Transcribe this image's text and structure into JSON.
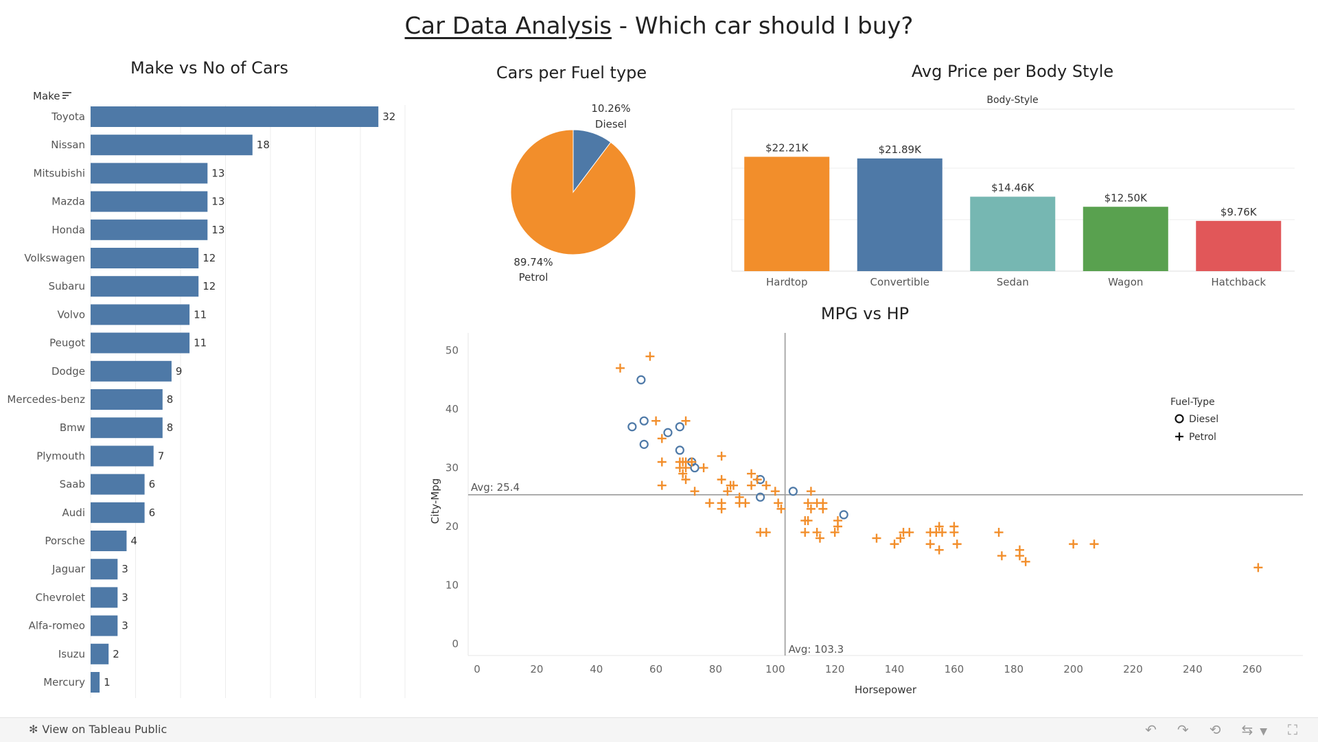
{
  "page": {
    "title_main": "Car Data Analysis",
    "title_rest": " - Which car should I buy?"
  },
  "chart_data": [
    {
      "type": "bar",
      "orientation": "horizontal",
      "title": "Make vs No of Cars",
      "ylabel": "Make",
      "categories": [
        "Toyota",
        "Nissan",
        "Mitsubishi",
        "Mazda",
        "Honda",
        "Volkswagen",
        "Subaru",
        "Volvo",
        "Peugot",
        "Dodge",
        "Mercedes-benz",
        "Bmw",
        "Plymouth",
        "Saab",
        "Audi",
        "Porsche",
        "Jaguar",
        "Chevrolet",
        "Alfa-romeo",
        "Isuzu",
        "Mercury"
      ],
      "values": [
        32,
        18,
        13,
        13,
        13,
        12,
        12,
        11,
        11,
        9,
        8,
        8,
        7,
        6,
        6,
        4,
        3,
        3,
        3,
        2,
        1
      ],
      "xlim": [
        0,
        35
      ],
      "grid": true,
      "color": "#4e79a7"
    },
    {
      "type": "pie",
      "title": "Cars per Fuel type",
      "slices": [
        {
          "label": "Diesel",
          "value": 10.26,
          "value_label": "10.26%",
          "color": "#4e79a7"
        },
        {
          "label": "Petrol",
          "value": 89.74,
          "value_label": "89.74%",
          "color": "#f28e2b"
        }
      ]
    },
    {
      "type": "bar",
      "title": "Avg Price per Body Style",
      "header": "Body-Style",
      "categories": [
        "Hardtop",
        "Convertible",
        "Sedan",
        "Wagon",
        "Hatchback"
      ],
      "values": [
        22.21,
        21.89,
        14.46,
        12.5,
        9.76
      ],
      "value_labels": [
        "$22.21K",
        "$21.89K",
        "$14.46K",
        "$12.50K",
        "$9.76K"
      ],
      "colors": [
        "#f28e2b",
        "#4e79a7",
        "#76b7b2",
        "#59a14f",
        "#e15759"
      ],
      "ylim": [
        0,
        25
      ],
      "grid": true
    },
    {
      "type": "scatter",
      "title": "MPG vs HP",
      "xlabel": "Horsepower",
      "ylabel": "City-Mpg",
      "xlim": [
        -3,
        277
      ],
      "ylim": [
        -2,
        53
      ],
      "xticks": [
        0,
        20,
        40,
        60,
        80,
        100,
        120,
        140,
        160,
        180,
        200,
        220,
        240,
        260
      ],
      "yticks": [
        0,
        10,
        20,
        30,
        40,
        50
      ],
      "reference_lines": [
        {
          "axis": "y",
          "value": 25.4,
          "label": "Avg: 25.4"
        },
        {
          "axis": "x",
          "value": 103.3,
          "label": "Avg: 103.3"
        }
      ],
      "legend": {
        "title": "Fuel-Type",
        "placement": "right"
      },
      "series": [
        {
          "name": "Diesel",
          "marker": "circle",
          "color": "#4e79a7",
          "points": [
            [
              52,
              37
            ],
            [
              55,
              45
            ],
            [
              56,
              34
            ],
            [
              56,
              38
            ],
            [
              64,
              36
            ],
            [
              68,
              37
            ],
            [
              68,
              33
            ],
            [
              72,
              31
            ],
            [
              73,
              30
            ],
            [
              95,
              28
            ],
            [
              95,
              25
            ],
            [
              106,
              26
            ],
            [
              123,
              22
            ]
          ]
        },
        {
          "name": "Petrol",
          "marker": "plus",
          "color": "#f28e2b",
          "points": [
            [
              48,
              47
            ],
            [
              58,
              49
            ],
            [
              60,
              38
            ],
            [
              62,
              35
            ],
            [
              62,
              31
            ],
            [
              62,
              27
            ],
            [
              68,
              31
            ],
            [
              68,
              30
            ],
            [
              69,
              31
            ],
            [
              69,
              29
            ],
            [
              70,
              38
            ],
            [
              70,
              30
            ],
            [
              70,
              28
            ],
            [
              70,
              31
            ],
            [
              72,
              31
            ],
            [
              73,
              26
            ],
            [
              76,
              30
            ],
            [
              78,
              24
            ],
            [
              82,
              32
            ],
            [
              82,
              28
            ],
            [
              82,
              24
            ],
            [
              82,
              23
            ],
            [
              84,
              26
            ],
            [
              85,
              27
            ],
            [
              86,
              27
            ],
            [
              88,
              25
            ],
            [
              88,
              24
            ],
            [
              90,
              24
            ],
            [
              92,
              29
            ],
            [
              92,
              27
            ],
            [
              94,
              28
            ],
            [
              95,
              19
            ],
            [
              97,
              27
            ],
            [
              97,
              19
            ],
            [
              100,
              26
            ],
            [
              101,
              24
            ],
            [
              102,
              23
            ],
            [
              110,
              21
            ],
            [
              110,
              19
            ],
            [
              111,
              21
            ],
            [
              111,
              24
            ],
            [
              112,
              26
            ],
            [
              112,
              23
            ],
            [
              114,
              24
            ],
            [
              114,
              19
            ],
            [
              115,
              18
            ],
            [
              116,
              24
            ],
            [
              116,
              23
            ],
            [
              120,
              19
            ],
            [
              121,
              20
            ],
            [
              121,
              21
            ],
            [
              134,
              18
            ],
            [
              140,
              17
            ],
            [
              142,
              18
            ],
            [
              143,
              19
            ],
            [
              145,
              19
            ],
            [
              152,
              17
            ],
            [
              152,
              19
            ],
            [
              154,
              19
            ],
            [
              155,
              20
            ],
            [
              155,
              16
            ],
            [
              156,
              19
            ],
            [
              160,
              20
            ],
            [
              160,
              19
            ],
            [
              161,
              17
            ],
            [
              175,
              19
            ],
            [
              176,
              15
            ],
            [
              182,
              16
            ],
            [
              182,
              15
            ],
            [
              184,
              14
            ],
            [
              200,
              17
            ],
            [
              207,
              17
            ],
            [
              262,
              13
            ]
          ]
        }
      ]
    }
  ],
  "footer": {
    "tableau_link": "View on Tableau Public",
    "icons": [
      "tableau-logo-icon",
      "undo-icon",
      "redo-icon",
      "revert-icon",
      "share-icon",
      "dropdown-caret-icon",
      "fullscreen-icon"
    ]
  }
}
